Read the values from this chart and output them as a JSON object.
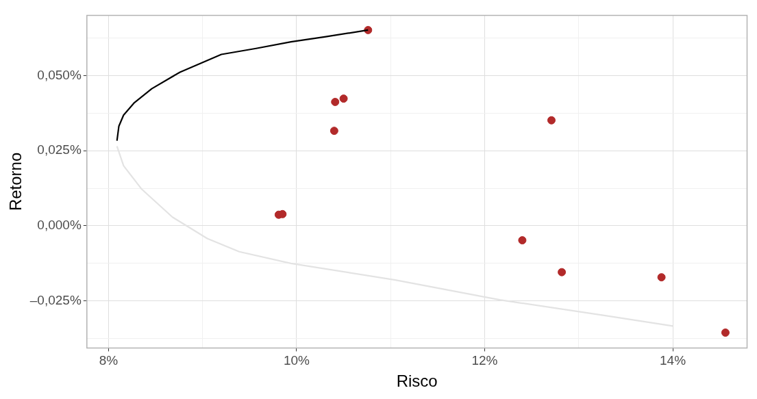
{
  "chart_data": {
    "type": "scatter",
    "xlabel": "Risco",
    "ylabel": "Retorno",
    "xlim": [
      7.77,
      14.79
    ],
    "ylim": [
      -0.0406,
      0.07
    ],
    "xticks": [
      {
        "value": 8,
        "label": "8%"
      },
      {
        "value": 9,
        "label": null
      },
      {
        "value": 10,
        "label": "10%"
      },
      {
        "value": 11,
        "label": null
      },
      {
        "value": 12,
        "label": "12%"
      },
      {
        "value": 13,
        "label": null
      },
      {
        "value": 14,
        "label": "14%"
      }
    ],
    "yticks": [
      {
        "value": -0.0375,
        "label": null
      },
      {
        "value": -0.025,
        "label": "–0,025%"
      },
      {
        "value": -0.0125,
        "label": null
      },
      {
        "value": 0,
        "label": "0,000%"
      },
      {
        "value": 0.0125,
        "label": null
      },
      {
        "value": 0.025,
        "label": "0,025%"
      },
      {
        "value": 0.0375,
        "label": null
      },
      {
        "value": 0.05,
        "label": "0,050%"
      },
      {
        "value": 0.0625,
        "label": null
      }
    ],
    "grid": true,
    "legend": false,
    "series": [
      {
        "type": "line",
        "marker": "none",
        "color": "#e3e3e3",
        "x": [
          8.09,
          8.16,
          8.35,
          8.68,
          9.05,
          9.39,
          9.94,
          11.05,
          12.16,
          13.27,
          14.0
        ],
        "values": [
          0.0265,
          0.02,
          0.0123,
          0.0029,
          -0.0042,
          -0.0086,
          -0.0125,
          -0.018,
          -0.0246,
          -0.0298,
          -0.0333
        ]
      },
      {
        "type": "line",
        "marker": "none",
        "color": "#000000",
        "x": [
          8.09,
          8.11,
          8.16,
          8.27,
          8.46,
          8.76,
          9.2,
          9.57,
          9.94,
          10.31,
          10.76
        ],
        "values": [
          0.0283,
          0.0331,
          0.0368,
          0.0408,
          0.0456,
          0.0511,
          0.057,
          0.059,
          0.0612,
          0.0629,
          0.0651
        ]
      },
      {
        "marker": "circle",
        "color": "#b22a2a",
        "x": [
          10.76,
          10.41,
          10.5,
          10.4,
          12.71,
          9.81,
          9.85,
          12.4,
          12.82,
          13.88,
          14.56
        ],
        "values": [
          0.0651,
          0.0412,
          0.0423,
          0.0316,
          0.0351,
          0.0037,
          0.0039,
          -0.0048,
          -0.0154,
          -0.0171,
          -0.0355
        ]
      }
    ]
  }
}
